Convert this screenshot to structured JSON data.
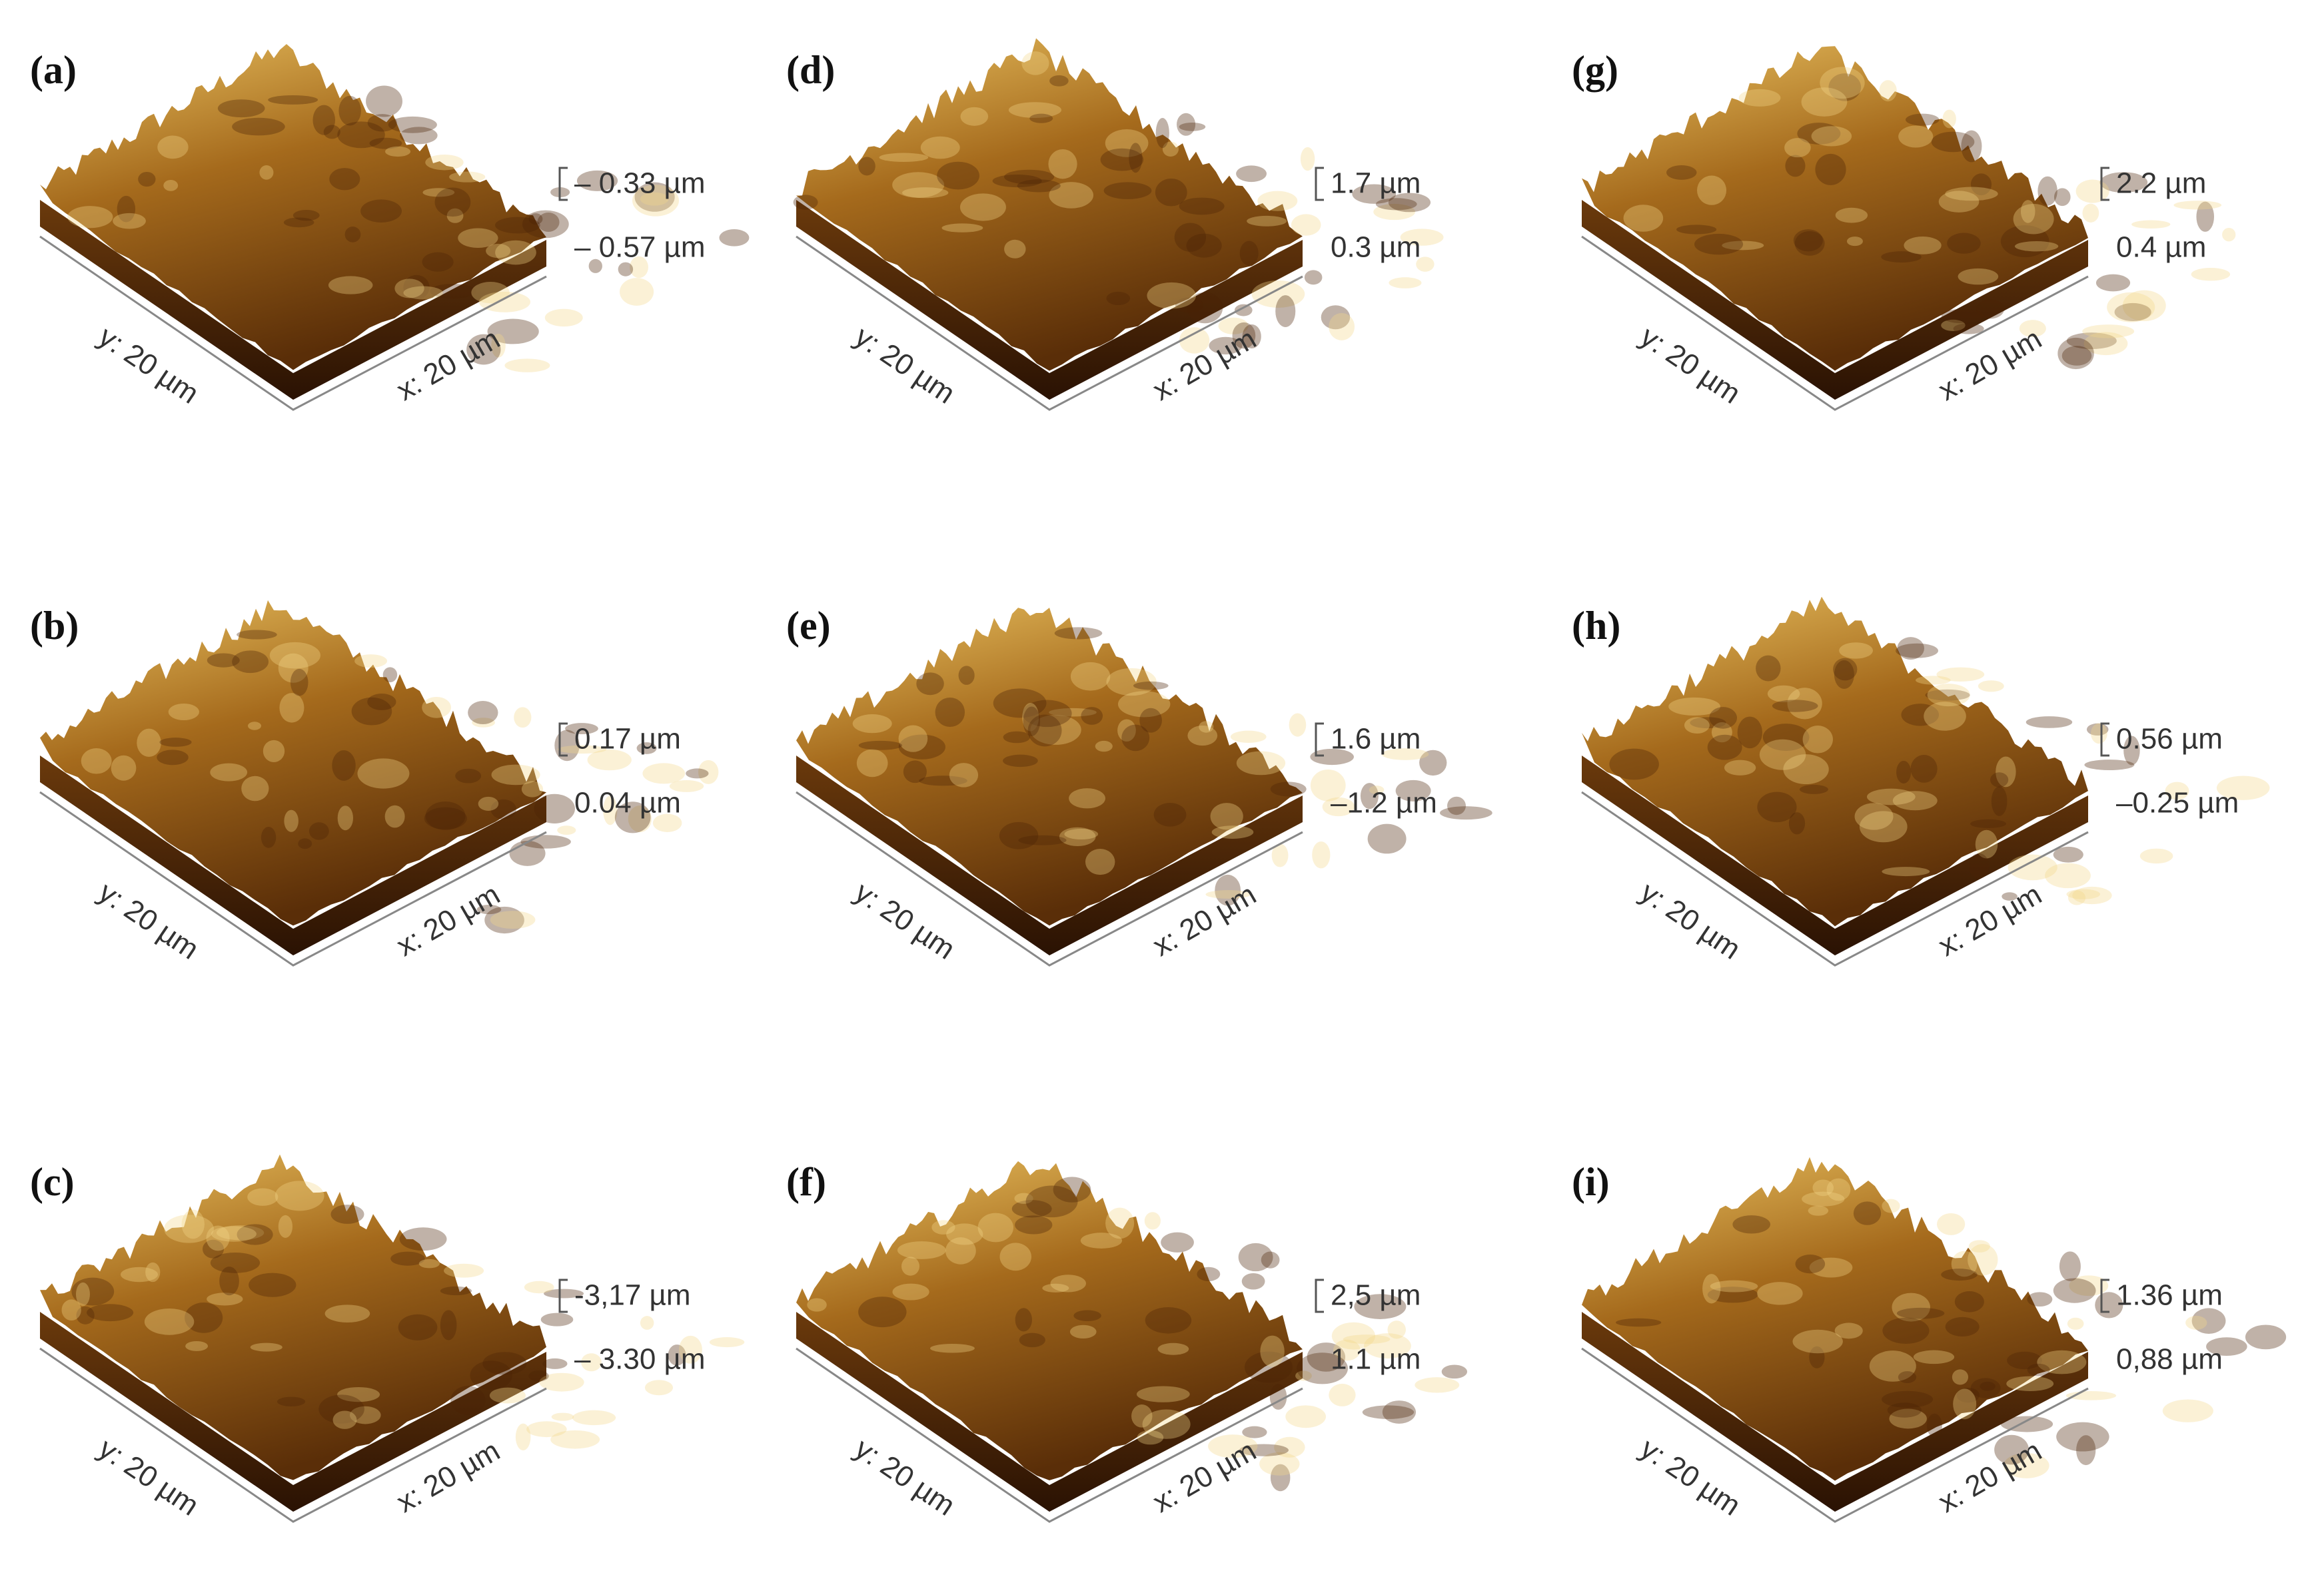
{
  "panels": [
    {
      "label": "(a)",
      "y_axis": "y: 20 µm",
      "x_axis": "x: 20 µm",
      "z_top": "– 0.33 µm",
      "z_bottom": "– 0.57 µm"
    },
    {
      "label": "(b)",
      "y_axis": "y: 20 µm",
      "x_axis": "x: 20 µm",
      "z_top": "0.17 µm",
      "z_bottom": "0.04 µm"
    },
    {
      "label": "(c)",
      "y_axis": "y: 20 µm",
      "x_axis": "x: 20 µm",
      "z_top": "-3,17 µm",
      "z_bottom": "– 3.30 µm"
    },
    {
      "label": "(d)",
      "y_axis": "y: 20 µm",
      "x_axis": "x: 20 µm",
      "z_top": "1.7 µm",
      "z_bottom": "0.3 µm"
    },
    {
      "label": "(e)",
      "y_axis": "y: 20 µm",
      "x_axis": "x: 20 µm",
      "z_top": "1.6 µm",
      "z_bottom": "–1.2 µm"
    },
    {
      "label": "(f)",
      "y_axis": "y: 20 µm",
      "x_axis": "x: 20 µm",
      "z_top": "2,5 µm",
      "z_bottom": "1.1 µm"
    },
    {
      "label": "(g)",
      "y_axis": "y: 20 µm",
      "x_axis": "x: 20 µm",
      "z_top": "2.2 µm",
      "z_bottom": "0.4 µm"
    },
    {
      "label": "(h)",
      "y_axis": "y: 20 µm",
      "x_axis": "x: 20 µm",
      "z_top": "0.56 µm",
      "z_bottom": "–0.25 µm"
    },
    {
      "label": "(i)",
      "y_axis": "y: 20 µm",
      "x_axis": "x: 20 µm",
      "z_top": "1.36 µm",
      "z_bottom": "0,88 µm"
    }
  ]
}
